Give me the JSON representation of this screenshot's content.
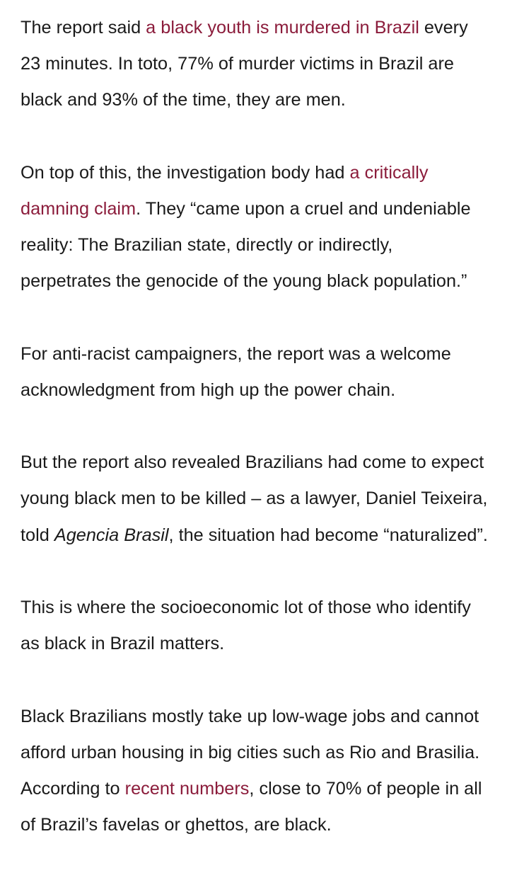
{
  "paragraphs": [
    {
      "lines": [
        [
          "The report said ",
          {
            "link": "a black youth is murdered in Brazil"
          },
          " every"
        ],
        [
          "23 minutes. In toto, 77% of murder victims in Brazil are"
        ],
        [
          "black and 93% of the time, they are men."
        ]
      ]
    },
    {
      "lines": [
        [
          "On top of this, the investigation body had ",
          {
            "link": "a critically"
          }
        ],
        [
          {
            "link": "damning claim"
          },
          ". They “came upon a cruel and undeniable"
        ],
        [
          "reality: The Brazilian state, directly or indirectly,"
        ],
        [
          "perpetrates the genocide of the young black population.”"
        ]
      ]
    },
    {
      "lines": [
        [
          "For anti-racist campaigners, the report was a welcome"
        ],
        [
          "acknowledgment from high up the power chain."
        ]
      ]
    },
    {
      "lines": [
        [
          "But the report also revealed Brazilians had come to expect"
        ],
        [
          "young black men to be killed – as a lawyer, Daniel Teixeira,"
        ],
        [
          "told ",
          {
            "em": "Agencia Brasil"
          },
          ", the situation had become “naturalized”."
        ]
      ]
    },
    {
      "lines": [
        [
          "This is where the socioeconomic lot of those who identify"
        ],
        [
          "as black in Brazil matters."
        ]
      ]
    },
    {
      "lines": [
        [
          "Black Brazilians mostly take up low-wage jobs and cannot"
        ],
        [
          "afford urban housing in big cities such as Rio and Brasilia."
        ],
        [
          "According to ",
          {
            "link": "recent numbers"
          },
          ", close to 70% of people in all"
        ],
        [
          "of Brazil’s favelas or ghettos, are black."
        ]
      ]
    }
  ],
  "colors": {
    "text": "#1a1a1a",
    "link": "#8b1c3b",
    "background": "#ffffff"
  }
}
